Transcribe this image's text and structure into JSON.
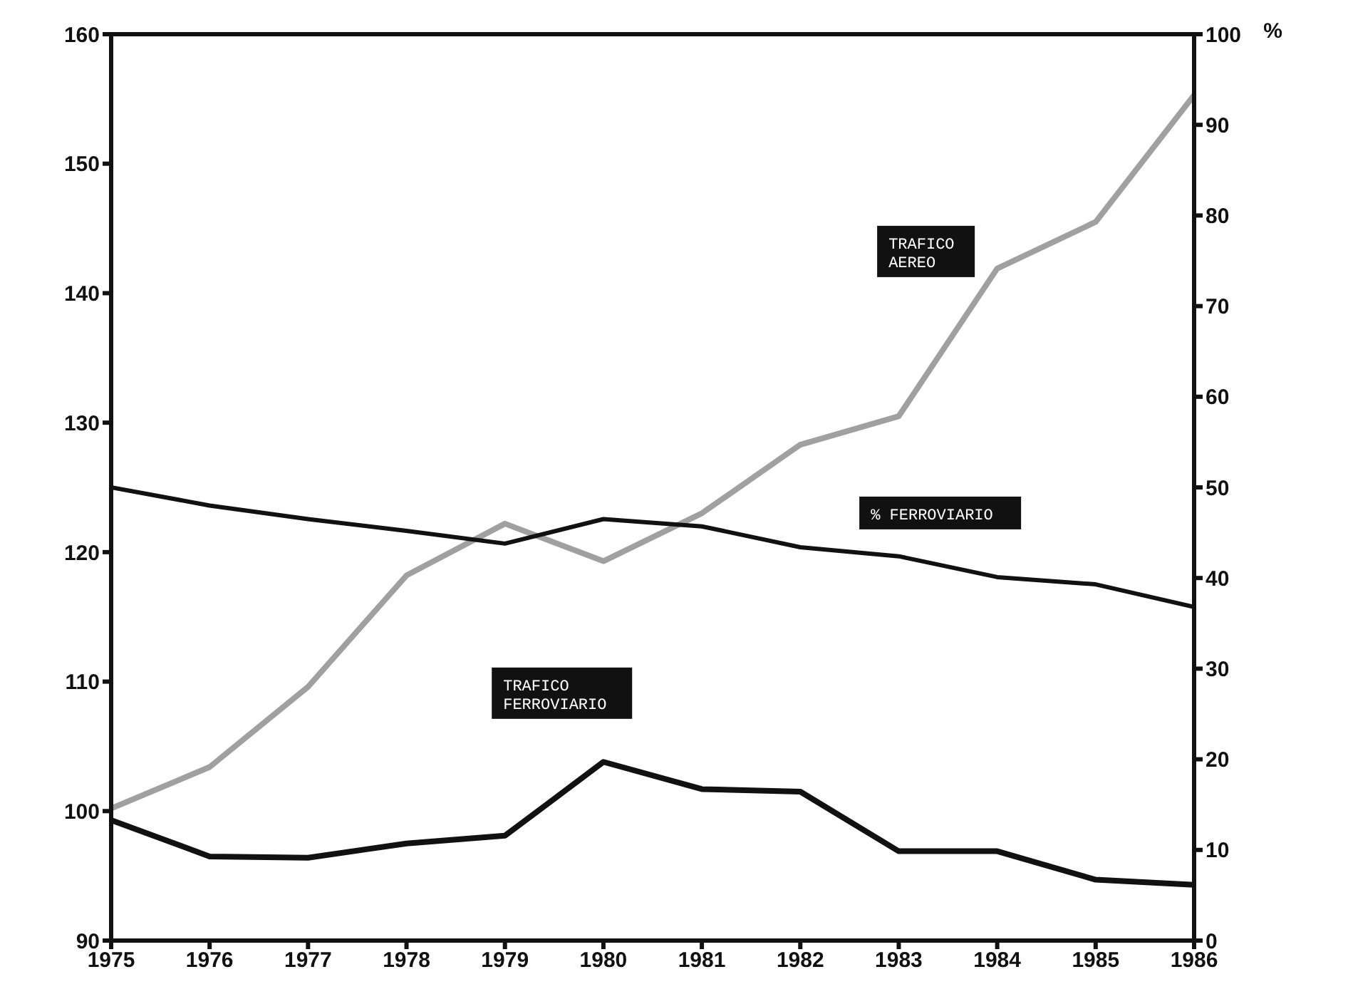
{
  "chart_data": {
    "type": "line",
    "x": [
      1975,
      1976,
      1977,
      1978,
      1979,
      1980,
      1981,
      1982,
      1983,
      1984,
      1985,
      1986
    ],
    "series": [
      {
        "name": "TRAFICO AEREO",
        "color": "#a0a0a0",
        "values": [
          100.2,
          103.4,
          109.6,
          118.2,
          122.2,
          119.3,
          123,
          128.3,
          130.5,
          141.9,
          145.5,
          155.3
        ]
      },
      {
        "name": "% FERROVIARIO",
        "color": "#111111",
        "axis": "y2",
        "values": [
          50,
          48,
          46.5,
          45.2,
          43.8,
          46.5,
          45.7,
          43.4,
          42.4,
          40.1,
          39.3,
          36.8
        ]
      },
      {
        "name": "TRAFICO FERROVIARIO",
        "color": "#111111",
        "values": [
          99.3,
          96.5,
          96.4,
          97.5,
          98.1,
          103.8,
          101.7,
          101.5,
          96.9,
          96.9,
          94.7,
          94.3
        ]
      }
    ],
    "y2label": "%",
    "xlim": [
      1975,
      1986
    ],
    "xticks": [
      1975,
      1976,
      1977,
      1978,
      1979,
      1980,
      1981,
      1982,
      1983,
      1984,
      1985,
      1986
    ],
    "ylim": [
      90,
      160
    ],
    "yticks": [
      90,
      100,
      110,
      120,
      130,
      140,
      150,
      160
    ],
    "y2lim": [
      0,
      100
    ],
    "y2ticks": [
      0,
      10,
      20,
      30,
      40,
      50,
      60,
      70,
      80,
      90,
      100
    ],
    "marker": "none",
    "line_style": "solid"
  }
}
